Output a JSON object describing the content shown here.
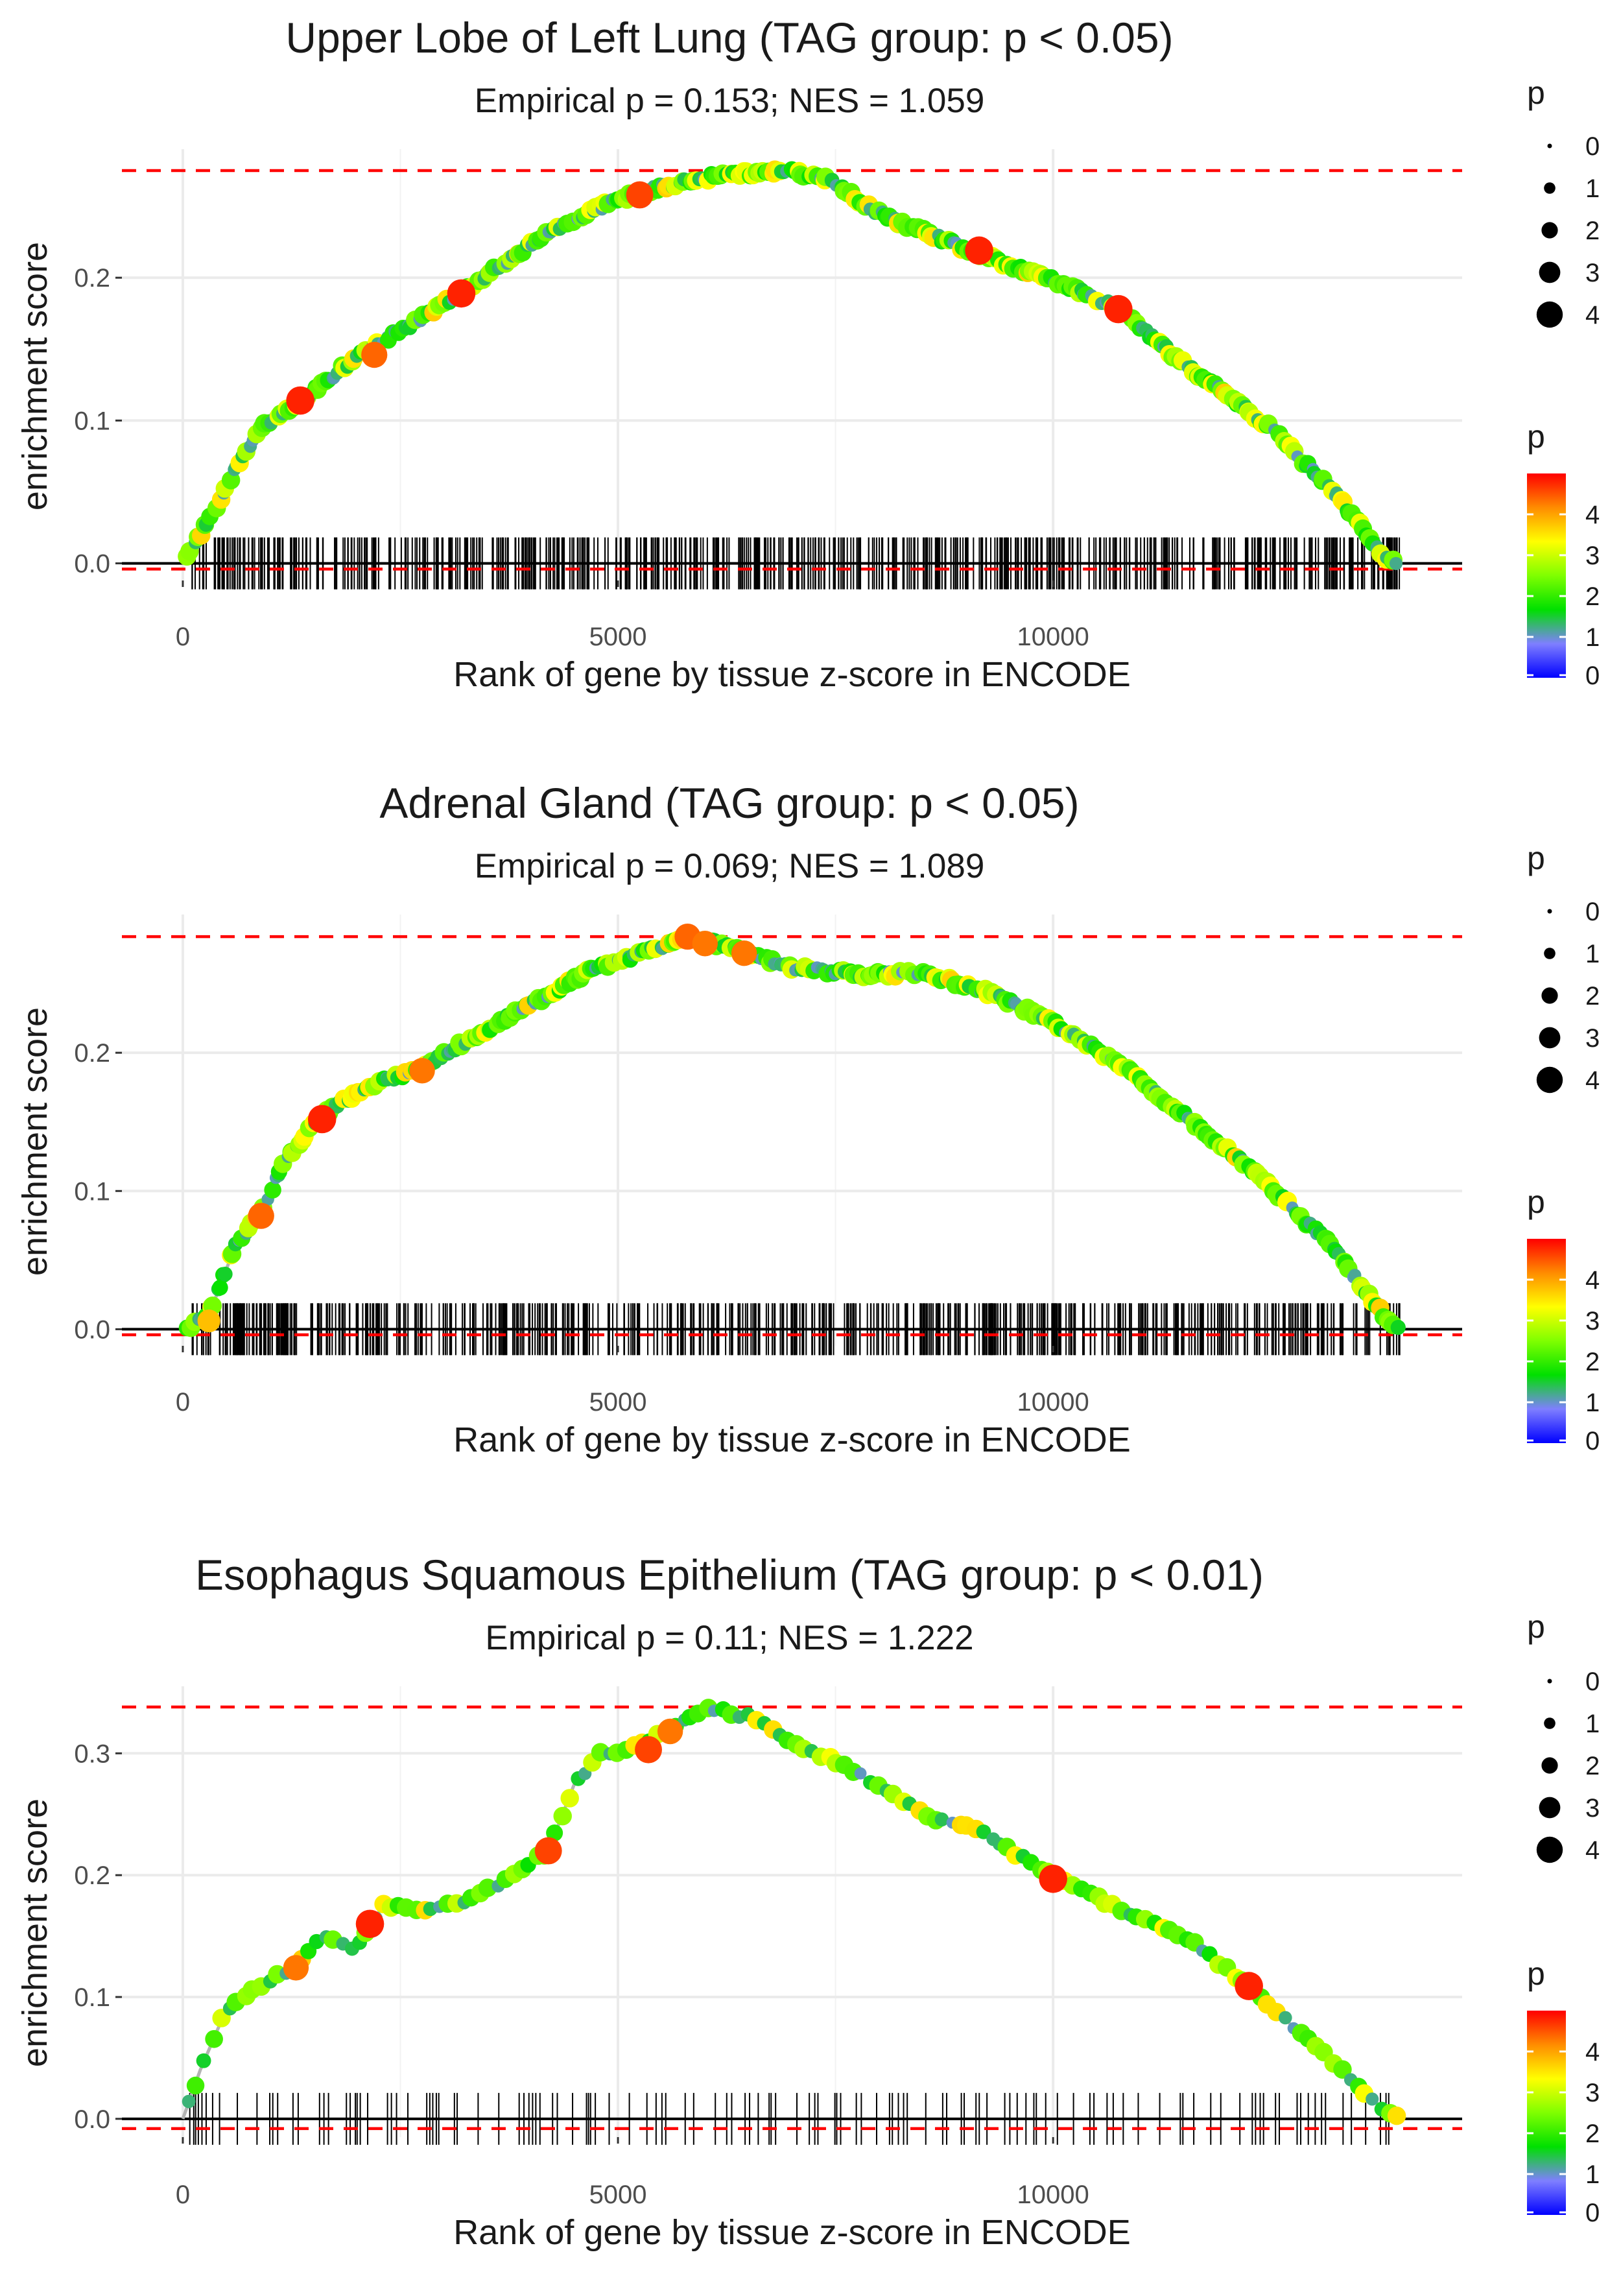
{
  "figure": {
    "xlabel": "Rank of gene by tissue z-score in ENCODE",
    "ylabel": "enrichment score",
    "size_legend_title": "p",
    "color_legend_title": "p",
    "size_legend_labels": [
      "0",
      "1",
      "2",
      "3",
      "4"
    ],
    "color_legend_labels": [
      "4",
      "3",
      "2",
      "1",
      "0"
    ],
    "colors": {
      "max_es_line": "#ff0000",
      "path_line": "#b3b3b3",
      "gradient": [
        "#ff0000",
        "#ff8c00",
        "#ffff00",
        "#7fff00",
        "#00e000",
        "#7f7fff",
        "#0000ff"
      ]
    }
  },
  "chart_data": [
    {
      "type": "line",
      "title": "Upper Lobe of Left Lung (TAG group: p < 0.05)",
      "subtitle": "Empirical p = 0.153; NES = 1.059",
      "xlabel": "Rank of gene by tissue z-score in ENCODE",
      "ylabel": "enrichment score",
      "xlim": [
        -700,
        14700
      ],
      "ylim": [
        -0.012,
        0.29
      ],
      "xticks": [
        0,
        5000,
        10000
      ],
      "xtick_labels": [
        "0",
        "5000",
        "10000"
      ],
      "yticks": [
        0.0,
        0.1,
        0.2
      ],
      "ytick_labels": [
        "0.0",
        "0.1",
        "0.2"
      ],
      "max_es": 0.275,
      "min_es": -0.004,
      "n_total": 14000,
      "rug_density": "dense",
      "seed": 11,
      "curve": [
        [
          0,
          0
        ],
        [
          300,
          0.03
        ],
        [
          600,
          0.065
        ],
        [
          900,
          0.095
        ],
        [
          1400,
          0.115
        ],
        [
          2000,
          0.145
        ],
        [
          2700,
          0.17
        ],
        [
          3200,
          0.19
        ],
        [
          3800,
          0.215
        ],
        [
          4300,
          0.235
        ],
        [
          5000,
          0.255
        ],
        [
          5600,
          0.265
        ],
        [
          6200,
          0.272
        ],
        [
          6900,
          0.275
        ],
        [
          7400,
          0.27
        ],
        [
          8000,
          0.245
        ],
        [
          9000,
          0.22
        ],
        [
          10000,
          0.198
        ],
        [
          10700,
          0.18
        ],
        [
          11500,
          0.14
        ],
        [
          12500,
          0.095
        ],
        [
          13300,
          0.045
        ],
        [
          13800,
          0.005
        ],
        [
          14000,
          0
        ]
      ],
      "big_points": [
        [
          1350,
          0.114,
          4
        ],
        [
          2200,
          0.146,
          3.6
        ],
        [
          3200,
          0.189,
          4
        ],
        [
          5250,
          0.258,
          3.8
        ],
        [
          9150,
          0.219,
          4
        ],
        [
          10750,
          0.178,
          4
        ]
      ]
    },
    {
      "type": "line",
      "title": "Adrenal Gland (TAG group: p < 0.05)",
      "subtitle": "Empirical p = 0.069; NES = 1.089",
      "xlabel": "Rank of gene by tissue z-score in ENCODE",
      "ylabel": "enrichment score",
      "xlim": [
        -700,
        14700
      ],
      "ylim": [
        -0.012,
        0.3
      ],
      "xticks": [
        0,
        5000,
        10000
      ],
      "xtick_labels": [
        "0",
        "5000",
        "10000"
      ],
      "yticks": [
        0.0,
        0.1,
        0.2
      ],
      "ytick_labels": [
        "0.0",
        "0.1",
        "0.2"
      ],
      "max_es": 0.284,
      "min_es": -0.004,
      "n_total": 14000,
      "rug_density": "dense",
      "seed": 23,
      "curve": [
        [
          0,
          0
        ],
        [
          300,
          0.01
        ],
        [
          600,
          0.06
        ],
        [
          900,
          0.085
        ],
        [
          1200,
          0.125
        ],
        [
          1600,
          0.155
        ],
        [
          2100,
          0.175
        ],
        [
          2700,
          0.188
        ],
        [
          3300,
          0.21
        ],
        [
          4000,
          0.235
        ],
        [
          4700,
          0.26
        ],
        [
          5200,
          0.27
        ],
        [
          5800,
          0.284
        ],
        [
          6200,
          0.278
        ],
        [
          7000,
          0.262
        ],
        [
          7800,
          0.256
        ],
        [
          8500,
          0.258
        ],
        [
          9200,
          0.245
        ],
        [
          10000,
          0.222
        ],
        [
          10800,
          0.19
        ],
        [
          11500,
          0.155
        ],
        [
          12300,
          0.115
        ],
        [
          13200,
          0.06
        ],
        [
          13800,
          0.01
        ],
        [
          14000,
          0
        ]
      ],
      "big_points": [
        [
          300,
          0.006,
          3
        ],
        [
          900,
          0.082,
          3.6
        ],
        [
          1600,
          0.152,
          4
        ],
        [
          2750,
          0.187,
          3.5
        ],
        [
          5800,
          0.284,
          3.6
        ],
        [
          6000,
          0.279,
          3.5
        ],
        [
          6450,
          0.272,
          3.5
        ]
      ]
    },
    {
      "type": "line",
      "title": "Esophagus Squamous Epithelium (TAG group: p < 0.01)",
      "subtitle": "Empirical p = 0.11; NES = 1.222",
      "xlabel": "Rank of gene by tissue z-score in ENCODE",
      "ylabel": "enrichment score",
      "xlim": [
        -700,
        14700
      ],
      "ylim": [
        -0.015,
        0.355
      ],
      "xticks": [
        0,
        5000,
        10000
      ],
      "xtick_labels": [
        "0",
        "5000",
        "10000"
      ],
      "yticks": [
        0.0,
        0.1,
        0.2,
        0.3
      ],
      "ytick_labels": [
        "0.0",
        "0.1",
        "0.2",
        "0.3"
      ],
      "max_es": 0.338,
      "min_es": -0.008,
      "n_total": 14000,
      "rug_density": "sparse",
      "seed": 37,
      "curve": [
        [
          0,
          0
        ],
        [
          200,
          0.04
        ],
        [
          500,
          0.09
        ],
        [
          900,
          0.11
        ],
        [
          1300,
          0.125
        ],
        [
          1600,
          0.15
        ],
        [
          2000,
          0.14
        ],
        [
          2300,
          0.175
        ],
        [
          2800,
          0.17
        ],
        [
          3300,
          0.18
        ],
        [
          3800,
          0.2
        ],
        [
          4200,
          0.22
        ],
        [
          4500,
          0.275
        ],
        [
          4800,
          0.3
        ],
        [
          5200,
          0.305
        ],
        [
          5600,
          0.32
        ],
        [
          6000,
          0.338
        ],
        [
          6500,
          0.33
        ],
        [
          7000,
          0.31
        ],
        [
          7600,
          0.29
        ],
        [
          8500,
          0.25
        ],
        [
          9200,
          0.235
        ],
        [
          10000,
          0.198
        ],
        [
          10700,
          0.175
        ],
        [
          11500,
          0.15
        ],
        [
          12200,
          0.112
        ],
        [
          13000,
          0.06
        ],
        [
          13800,
          0.008
        ],
        [
          14000,
          0
        ]
      ],
      "big_points": [
        [
          1300,
          0.124,
          3.5
        ],
        [
          2150,
          0.16,
          4
        ],
        [
          4200,
          0.22,
          3.8
        ],
        [
          5350,
          0.303,
          3.8
        ],
        [
          5600,
          0.318,
          3.5
        ],
        [
          10000,
          0.197,
          4
        ],
        [
          12250,
          0.109,
          4
        ]
      ]
    }
  ]
}
